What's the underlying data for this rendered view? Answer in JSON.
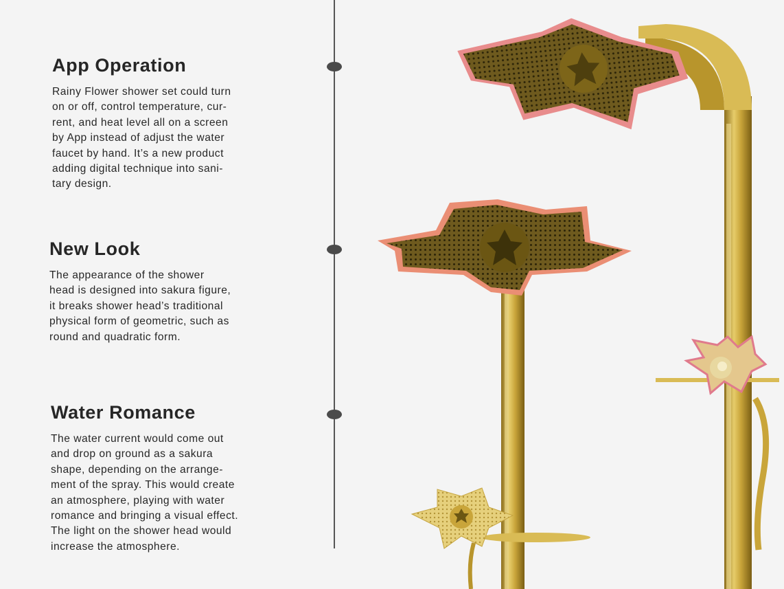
{
  "sections": [
    {
      "title": "App Operation",
      "body": "Rainy Flower shower set could turn\non or off, control temperature, cur-\nrent, and heat level all on a screen\nby App instead of adjust the water\nfaucet by hand. It’s a new product\nadding digital technique into sani-\ntary design."
    },
    {
      "title": "New Look",
      "body": "The appearance of the shower\nhead is designed into sakura figure,\nit breaks shower head’s traditional\nphysical form of geometric, such as\nround and quadratic form."
    },
    {
      "title": "Water Romance",
      "body": "The water current would come out\nand drop on ground as a sakura\nshape, depending on the arrange-\nment of the spray. This would create\nan atmosphere, playing with water\nromance and bringing a visual effect.\nThe light on the shower head would\nincrease the atmosphere."
    }
  ],
  "colors": {
    "background": "#f4f4f4",
    "gold": "#c9a53a",
    "pink_edge": "#e88c8c",
    "timeline": "#4b4b4b"
  }
}
